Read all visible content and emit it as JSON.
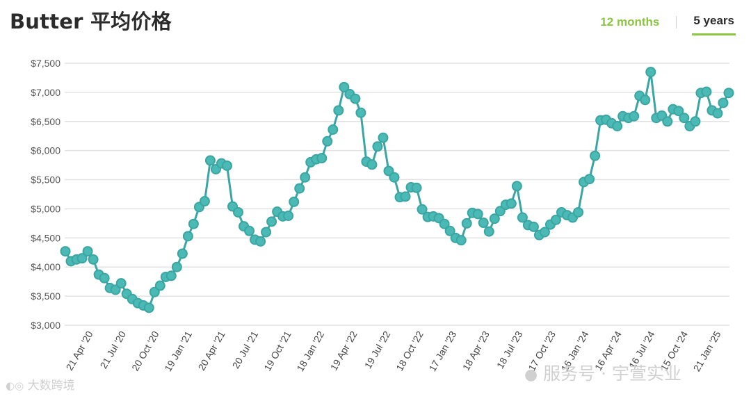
{
  "header": {
    "title": "Butter 平均价格",
    "tabs": [
      {
        "label": "12 months",
        "active": false
      },
      {
        "label": "5 years",
        "active": true
      }
    ]
  },
  "colors": {
    "line": "#3aa5a3",
    "marker_fill": "#4bbab5",
    "accent": "#8cc63e",
    "grid": "#e2e2e2"
  },
  "watermarks": {
    "left": "大数跨境",
    "right": "服务号 · 宇萱实业"
  },
  "chart_data": {
    "type": "line",
    "title": "Butter 平均价格",
    "ylim": [
      3000,
      7500
    ],
    "y_ticks": [
      "$3,000",
      "$3,500",
      "$4,000",
      "$4,500",
      "$5,000",
      "$5,500",
      "$6,000",
      "$6,500",
      "$7,000",
      "$7,500"
    ],
    "y_tick_values": [
      3000,
      3500,
      4000,
      4500,
      5000,
      5500,
      6000,
      6500,
      7000,
      7500
    ],
    "x_ticks": [
      "21 Apr '20",
      "21 Jul '20",
      "20 Oct '20",
      "19 Jan '21",
      "20 Apr '21",
      "20 Jul '21",
      "19 Oct '21",
      "18 Jan '22",
      "19 Apr '22",
      "19 Jul '22",
      "18 Oct '22",
      "17 Jan '23",
      "18 Apr '23",
      "18 Jul '23",
      "17 Oct '23",
      "16 Jan '24",
      "16 Apr '24",
      "16 Jul '24",
      "15 Oct '24",
      "21 Jan '25"
    ],
    "grid": true,
    "legend": "none",
    "series": [
      {
        "values": [
          4270,
          4100,
          4130,
          4150,
          4270,
          4130,
          3870,
          3810,
          3640,
          3610,
          3720,
          3540,
          3450,
          3380,
          3340,
          3300,
          3570,
          3680,
          3830,
          3850,
          4000,
          4230,
          4530,
          4740,
          5030,
          5130,
          5830,
          5680,
          5780,
          5740,
          5040,
          4940,
          4700,
          4620,
          4470,
          4440,
          4600,
          4780,
          4950,
          4870,
          4880,
          5120,
          5350,
          5540,
          5800,
          5850,
          5870,
          6160,
          6360,
          6690,
          7090,
          6970,
          6890,
          6650,
          5810,
          5760,
          6070,
          6220,
          5650,
          5540,
          5200,
          5210,
          5370,
          5360,
          4990,
          4860,
          4870,
          4840,
          4740,
          4620,
          4500,
          4460,
          4750,
          4930,
          4910,
          4760,
          4610,
          4830,
          4960,
          5070,
          5090,
          5390,
          4850,
          4720,
          4690,
          4550,
          4600,
          4730,
          4810,
          4940,
          4890,
          4850,
          4940,
          5460,
          5510,
          5910,
          6520,
          6530,
          6470,
          6420,
          6590,
          6560,
          6590,
          6940,
          6870,
          7350,
          6560,
          6600,
          6500,
          6710,
          6680,
          6560,
          6420,
          6500,
          6990,
          7010,
          6690,
          6640,
          6820,
          6990
        ]
      }
    ]
  }
}
